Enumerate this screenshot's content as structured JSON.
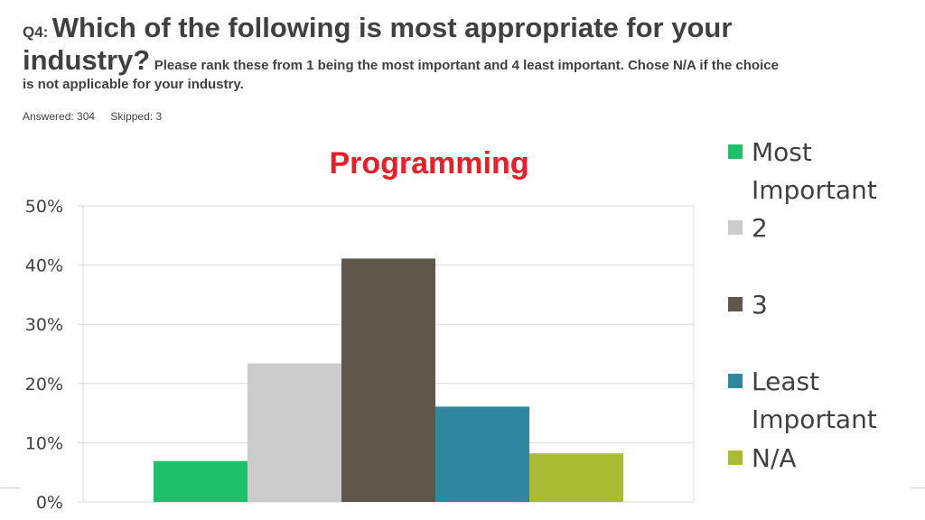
{
  "question": {
    "number": "Q4:",
    "title": "Which of the following is most appropriate for your industry?",
    "title_line1": "Which of the following is most appropriate for your",
    "title_line2": "industry?",
    "instruction_line1": "Please rank these from 1 being the most important and 4 least important.  Chose N/A if the choice",
    "instruction_line2": "is not applicable for your industry."
  },
  "stats": {
    "answered": "Answered: 304",
    "skipped": "Skipped: 3"
  },
  "chart_data": {
    "type": "bar",
    "title": "Programming",
    "categories": [
      "Most Important",
      "2",
      "3",
      "Least Important",
      "N/A"
    ],
    "values": [
      6.9,
      23.4,
      41.1,
      16.1,
      8.2
    ],
    "colors": [
      "#1ec06c",
      "#cccccc",
      "#5f574b",
      "#2f889f",
      "#a8bc34"
    ],
    "ylim": [
      0,
      50
    ],
    "yticks": [
      0,
      10,
      20,
      30,
      40,
      50
    ],
    "ytick_labels": [
      "0%",
      "10%",
      "20%",
      "30%",
      "40%",
      "50%"
    ],
    "grid": true,
    "legend_position": "right",
    "xlabel": "",
    "ylabel": ""
  },
  "legend": {
    "items": [
      {
        "label": "Most Important",
        "color": "#1ec06c"
      },
      {
        "label": "2",
        "color": "#cccccc"
      },
      {
        "label": "3",
        "color": "#5f574b"
      },
      {
        "label": "Least Important",
        "color": "#2f889f"
      },
      {
        "label": "N/A",
        "color": "#a8bc34"
      }
    ]
  }
}
